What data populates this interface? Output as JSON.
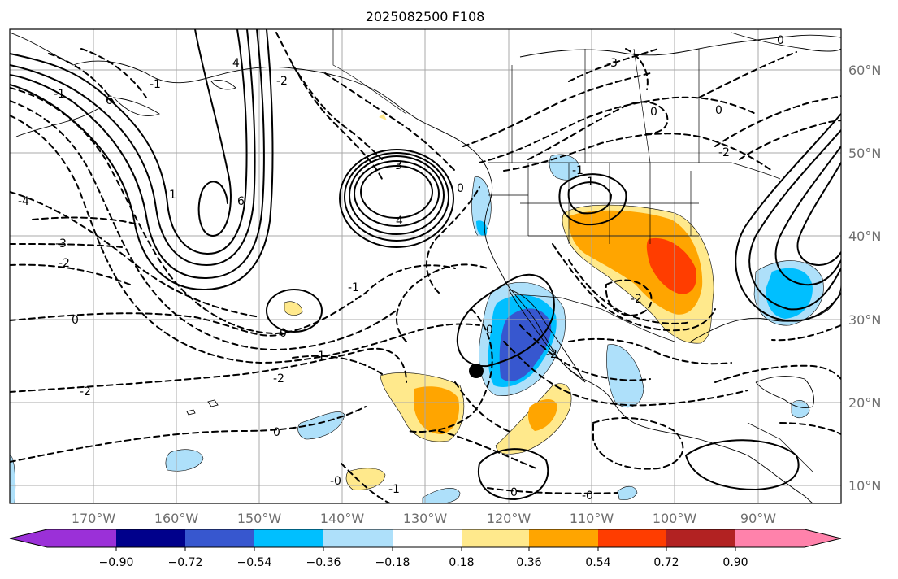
{
  "title": "2025082500 F108",
  "longitude_labels": [
    "170°W",
    "160°W",
    "150°W",
    "140°W",
    "130°W",
    "120°W",
    "110°W",
    "100°W",
    "90°W"
  ],
  "latitude_labels": [
    "60°N",
    "50°N",
    "40°N",
    "30°N",
    "20°N",
    "10°N"
  ],
  "colorbar": {
    "tick_labels": [
      "−0.90",
      "−0.72",
      "−0.54",
      "−0.36",
      "−0.18",
      "0.18",
      "0.36",
      "0.54",
      "0.72",
      "0.90"
    ],
    "colors": [
      "#9b30d8",
      "#00008b",
      "#3757cf",
      "#00bfff",
      "#aee0fa",
      "#ffffff",
      "#ffe98c",
      "#ffa500",
      "#ff3d00",
      "#b22222",
      "#ff82ab"
    ]
  },
  "contour_labels": [
    "-1",
    "6",
    "-1",
    "4",
    "-2",
    "6",
    "1",
    "3",
    "4",
    "0",
    "-4",
    "-3",
    "-2",
    "-1",
    "0",
    "0",
    "-1",
    "-2",
    "-2",
    "-3",
    "0",
    "0",
    "0",
    "-1",
    "1",
    "-2",
    "0",
    "-2",
    "-1",
    "-0",
    "-2",
    "0",
    "-0",
    "0"
  ],
  "point_marker": "storm-center-dot"
}
